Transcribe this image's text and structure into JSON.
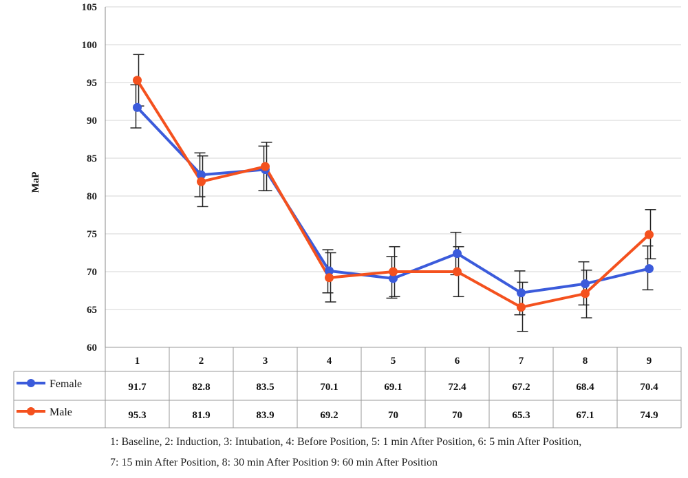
{
  "chart_data": {
    "type": "line",
    "title": "",
    "xlabel": "",
    "ylabel": "MaP",
    "ylim": [
      60,
      105
    ],
    "yticks": [
      60,
      65,
      70,
      75,
      80,
      85,
      90,
      95,
      100,
      105
    ],
    "grid": "horizontal",
    "legend": "data-table-below",
    "categories": [
      "1",
      "2",
      "3",
      "4",
      "5",
      "6",
      "7",
      "8",
      "9"
    ],
    "series": [
      {
        "name": "Female",
        "color": "#3b5bdb",
        "values": [
          91.7,
          82.8,
          83.5,
          70.1,
          69.1,
          72.4,
          67.2,
          68.4,
          70.4
        ],
        "table_values": [
          "91.7",
          "82.8",
          "83.5",
          "70.1",
          "69.1",
          "72.4",
          "67.2",
          "68.4",
          "70.4"
        ],
        "error_low": [
          89.0,
          79.9,
          80.7,
          67.2,
          66.5,
          69.6,
          64.3,
          65.6,
          67.6
        ],
        "error_high": [
          94.7,
          85.7,
          86.6,
          72.9,
          72.0,
          75.2,
          70.1,
          71.3,
          73.4
        ]
      },
      {
        "name": "Male",
        "color": "#f4511e",
        "values": [
          95.3,
          81.9,
          83.9,
          69.2,
          70,
          70,
          65.3,
          67.1,
          74.9
        ],
        "table_values": [
          "95.3",
          "81.9",
          "83.9",
          "69.2",
          "70",
          "70",
          "65.3",
          "67.1",
          "74.9"
        ],
        "error_low": [
          91.9,
          78.6,
          80.7,
          66.0,
          66.7,
          66.7,
          62.1,
          63.9,
          71.7
        ],
        "error_high": [
          98.7,
          85.3,
          87.1,
          72.5,
          73.3,
          73.3,
          68.6,
          70.2,
          78.2
        ]
      }
    ]
  },
  "footnote": {
    "line1": "1: Baseline, 2: Induction, 3: Intubation, 4: Before Position, 5: 1 min After Position, 6: 5 min After Position,",
    "line2": "7: 15 min After Position, 8: 30 min After Position 9: 60 min After Position"
  }
}
